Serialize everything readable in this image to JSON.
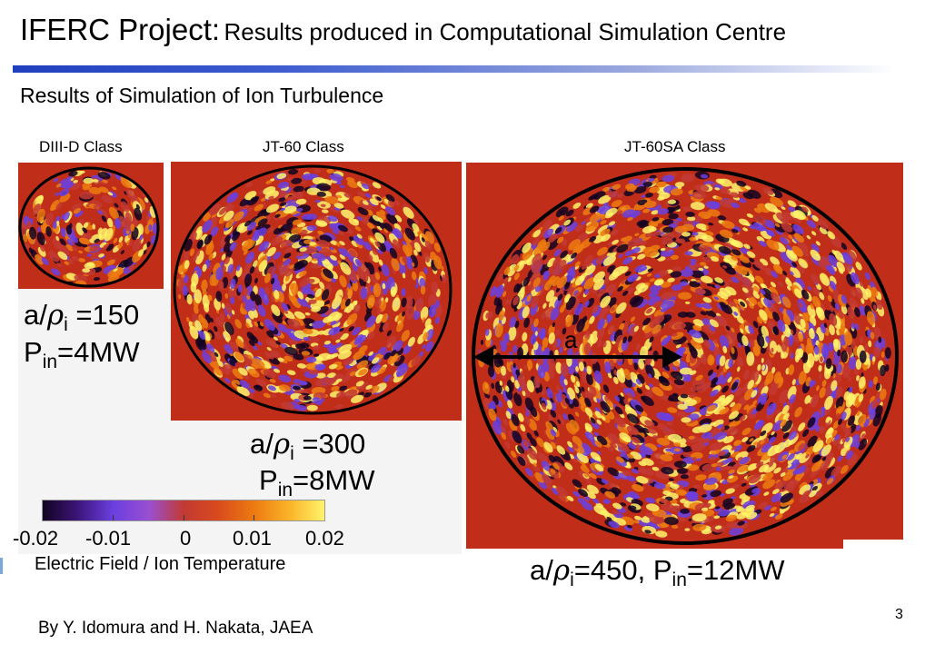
{
  "header": {
    "title_main": "IFERC Project:",
    "title_sub": "Results produced in Computational Simulation Centre"
  },
  "subtitle": "Results of Simulation of Ion Turbulence",
  "panels": [
    {
      "caption": "DIII-D Class",
      "ratio": "150",
      "power": "4MW"
    },
    {
      "caption": "JT-60 Class",
      "ratio": "300",
      "power": "8MW"
    },
    {
      "caption": "JT-60SA Class",
      "ratio": "450",
      "power": "12MW",
      "radius_label": "a"
    }
  ],
  "param_text": {
    "a": "a/",
    "rho": "ρ",
    "sub_i": "i",
    "eq": " =",
    "P": "P",
    "sub_in": "in",
    "pw_eq": "=",
    "sep": ", "
  },
  "colorbar": {
    "ticks": [
      "-0.02",
      "-0.01",
      "0",
      "0.01",
      "0.02"
    ],
    "label": "Electric Field / Ion Temperature",
    "colors": [
      "#120422",
      "#6a3fe0",
      "#c23a33",
      "#ec7a10",
      "#fff36a"
    ]
  },
  "credit": "By Y. Idomura and H. Nakata, JAEA",
  "page_number": "3"
}
